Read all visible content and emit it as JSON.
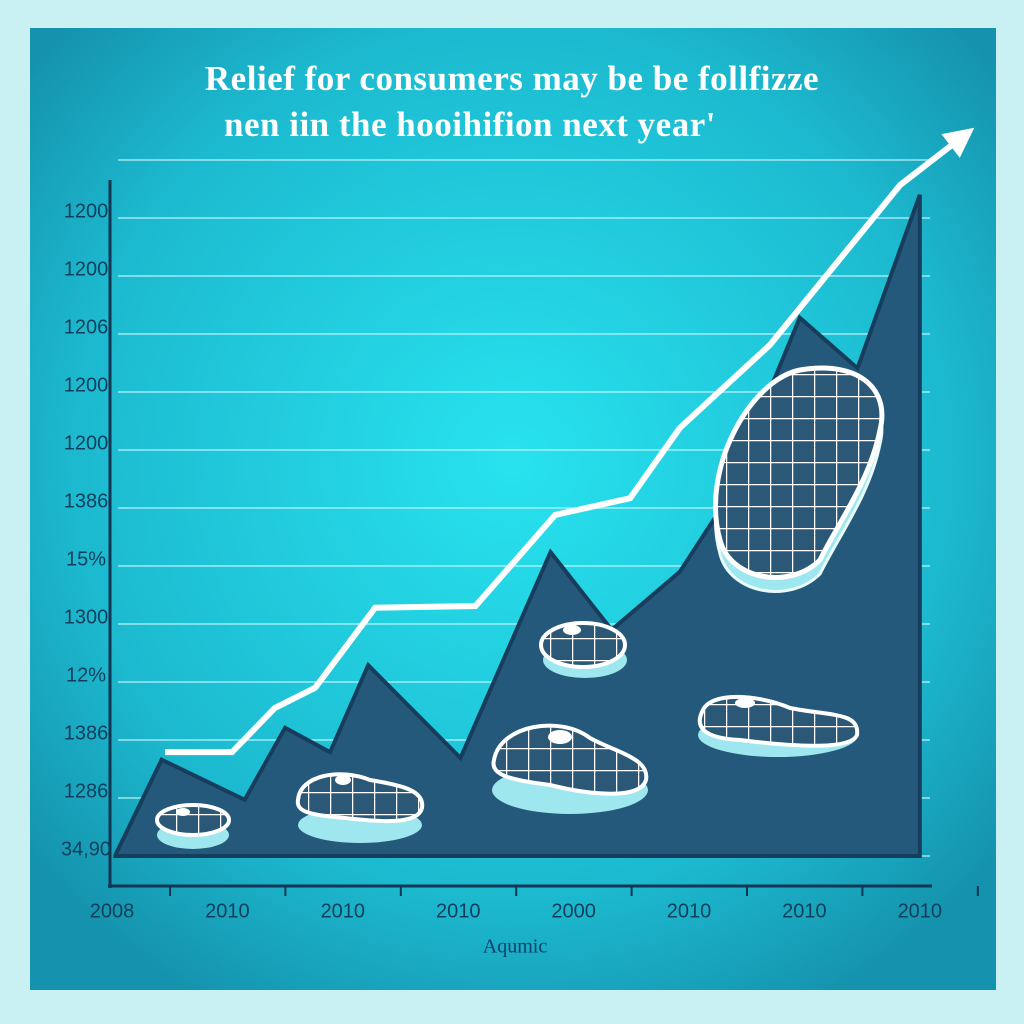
{
  "chart_data": {
    "type": "line-area",
    "title": "Relief for consumers may be be follfizze",
    "subtitle": "nen iin the hooihifion next year'",
    "footer": "Aqumic",
    "xlim": [
      -0.04,
      7.09
    ],
    "xticks": [
      {
        "value": 0,
        "label": "2008"
      },
      {
        "value": 1,
        "label": "2010"
      },
      {
        "value": 2,
        "label": "2010"
      },
      {
        "value": 3,
        "label": "2010"
      },
      {
        "value": 4,
        "label": "2000"
      },
      {
        "value": 5,
        "label": "2010"
      },
      {
        "value": 6,
        "label": "2010"
      },
      {
        "value": 7,
        "label": "2010"
      }
    ],
    "ylim": [
      -0.5,
      12
    ],
    "yticks": [
      {
        "value": 0,
        "label": "34,90"
      },
      {
        "value": 1,
        "label": "1286"
      },
      {
        "value": 2,
        "label": "1386"
      },
      {
        "value": 3,
        "label": "12%"
      },
      {
        "value": 4,
        "label": "1300"
      },
      {
        "value": 5,
        "label": "15%"
      },
      {
        "value": 6,
        "label": "1386"
      },
      {
        "value": 7,
        "label": "1200"
      },
      {
        "value": 8,
        "label": "1200"
      },
      {
        "value": 9,
        "label": "1206"
      },
      {
        "value": 10,
        "label": "1200"
      },
      {
        "value": 11,
        "label": "1200"
      },
      12
    ],
    "grid": true,
    "series": [
      {
        "kind": "area",
        "color": "#24597c",
        "x": [
          0.03,
          0.43,
          1.15,
          1.5,
          1.89,
          2.22,
          3.02,
          3.8,
          4.33,
          4.92,
          5.27,
          5.96,
          6.46,
          7.0
        ],
        "values": [
          0.02,
          1.66,
          0.97,
          2.21,
          1.79,
          3.29,
          1.69,
          5.24,
          3.9,
          4.9,
          5.97,
          9.28,
          8.41,
          11.4
        ]
      },
      {
        "kind": "line",
        "color": "#ffffff",
        "x": [
          0.46,
          1.04,
          1.41,
          1.76,
          2.28,
          3.15,
          3.84,
          4.49,
          4.92,
          5.7,
          6.83,
          7.39
        ],
        "values": [
          1.79,
          1.79,
          2.55,
          2.9,
          4.28,
          4.31,
          5.88,
          6.17,
          7.38,
          8.81,
          11.57,
          12.43
        ]
      }
    ]
  }
}
